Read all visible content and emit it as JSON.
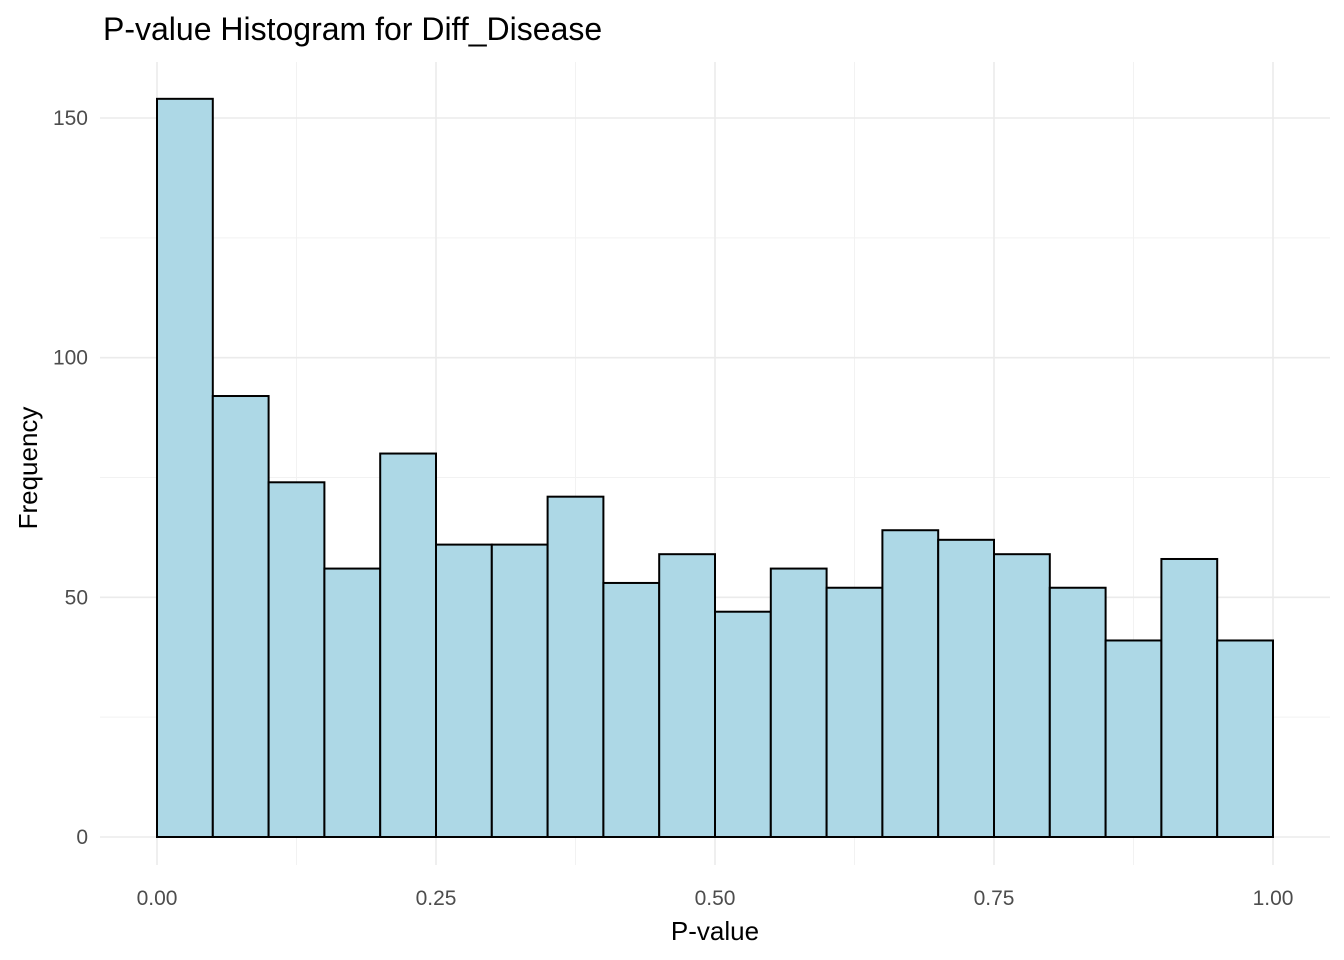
{
  "chart_data": {
    "type": "bar",
    "title": "P-value Histogram for Diff_Disease",
    "xlabel": "P-value",
    "ylabel": "Frequency",
    "xlim": [
      0,
      1
    ],
    "ylim": [
      0,
      154
    ],
    "bin_width": 0.05,
    "x": [
      0.025,
      0.075,
      0.125,
      0.175,
      0.225,
      0.275,
      0.325,
      0.375,
      0.425,
      0.475,
      0.525,
      0.575,
      0.625,
      0.675,
      0.725,
      0.775,
      0.825,
      0.875,
      0.925,
      0.975
    ],
    "values": [
      154,
      92,
      74,
      56,
      80,
      61,
      61,
      71,
      53,
      59,
      47,
      56,
      52,
      64,
      62,
      59,
      52,
      41,
      58,
      41
    ],
    "x_ticks": [
      0,
      0.25,
      0.5,
      0.75,
      1.0
    ],
    "x_tick_labels": [
      "0.00",
      "0.25",
      "0.50",
      "0.75",
      "1.00"
    ],
    "y_ticks": [
      0,
      50,
      100,
      150
    ],
    "y_tick_labels": [
      "0",
      "50",
      "100",
      "150"
    ],
    "grid": true,
    "legend": "none",
    "bar_fill": "#add8e6",
    "bar_outline": "#000000"
  }
}
